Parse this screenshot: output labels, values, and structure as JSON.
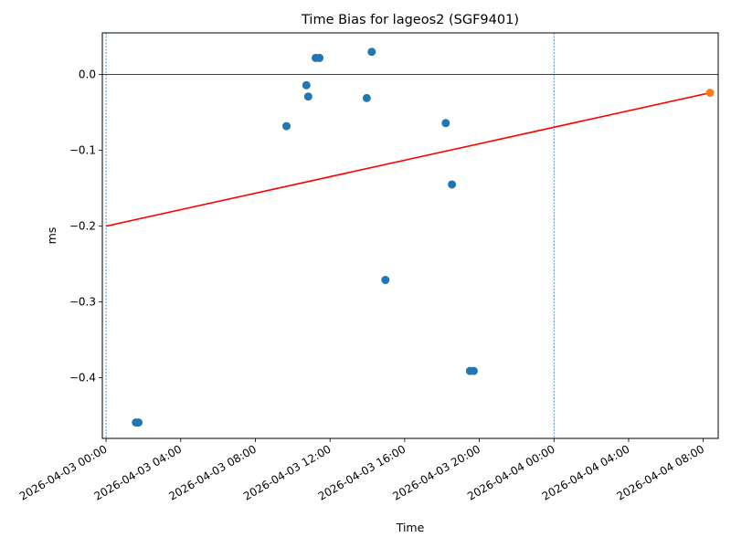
{
  "chart_data": {
    "type": "scatter",
    "title": "Time Bias for lageos2 (SGF9401)",
    "xlabel": "Time",
    "ylabel": "ms",
    "x_axis_kind": "datetime",
    "xlim": [
      "2026-04-02 23:48",
      "2026-04-04 08:48"
    ],
    "ylim": [
      -0.48,
      0.055
    ],
    "x_ticks": [
      "2026-04-03 00:00",
      "2026-04-03 04:00",
      "2026-04-03 08:00",
      "2026-04-03 12:00",
      "2026-04-03 16:00",
      "2026-04-03 20:00",
      "2026-04-04 00:00",
      "2026-04-04 04:00",
      "2026-04-04 08:00"
    ],
    "y_ticks": [
      0.0,
      -0.1,
      -0.2,
      -0.3,
      -0.4
    ],
    "y_tick_labels": [
      "0.0",
      "−0.1",
      "−0.2",
      "−0.3",
      "−0.4"
    ],
    "grid": false,
    "series": [
      {
        "color": "#1f77b4",
        "points": [
          {
            "x": "2026-04-03 01:36",
            "y": -0.459
          },
          {
            "x": "2026-04-03 01:44",
            "y": -0.459
          },
          {
            "x": "2026-04-03 09:40",
            "y": -0.068
          },
          {
            "x": "2026-04-03 10:44",
            "y": -0.014
          },
          {
            "x": "2026-04-03 10:50",
            "y": -0.029
          },
          {
            "x": "2026-04-03 11:14",
            "y": 0.022
          },
          {
            "x": "2026-04-03 11:26",
            "y": 0.022
          },
          {
            "x": "2026-04-03 13:58",
            "y": -0.031
          },
          {
            "x": "2026-04-03 14:14",
            "y": 0.03
          },
          {
            "x": "2026-04-03 14:58",
            "y": -0.271
          },
          {
            "x": "2026-04-03 18:12",
            "y": -0.064
          },
          {
            "x": "2026-04-03 18:32",
            "y": -0.145
          },
          {
            "x": "2026-04-03 19:30",
            "y": -0.391
          },
          {
            "x": "2026-04-03 19:42",
            "y": -0.391
          }
        ]
      },
      {
        "color": "#ff7f0e",
        "points": [
          {
            "x": "2026-04-04 08:22",
            "y": -0.024
          }
        ]
      }
    ],
    "trend_line": {
      "color": "#ff0000",
      "points": [
        {
          "x": "2026-04-03 00:00",
          "y": -0.2
        },
        {
          "x": "2026-04-04 08:22",
          "y": -0.024
        }
      ]
    },
    "horizontal_reference": {
      "y": 0.0,
      "color": "#000000"
    },
    "vertical_reference_lines": {
      "color": "#1f77b4",
      "style": "dashed",
      "x": [
        "2026-04-03 00:00",
        "2026-04-04 00:00"
      ]
    }
  }
}
